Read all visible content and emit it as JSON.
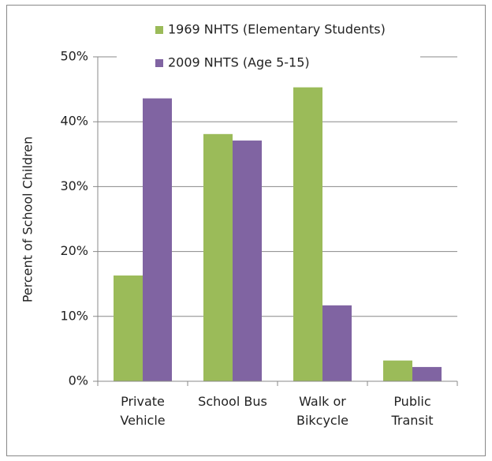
{
  "chart_data": {
    "type": "bar",
    "y_axis_label": "Percent of School Children",
    "categories": [
      "Private\nVehicle",
      "School Bus",
      "Walk or\nBikcycle",
      "Public\nTransit"
    ],
    "series": [
      {
        "name": "1969 NHTS (Elementary Students)",
        "color": "#9bbb59",
        "values": [
          16.3,
          38.1,
          45.3,
          3.2
        ]
      },
      {
        "name": "2009 NHTS (Age 5-15)",
        "color": "#8064a2",
        "values": [
          43.6,
          37.1,
          11.7,
          2.2
        ]
      }
    ],
    "ylim": [
      0,
      50
    ],
    "yticks": [
      {
        "value": 0,
        "label": "0%"
      },
      {
        "value": 10,
        "label": "10%"
      },
      {
        "value": 20,
        "label": "20%"
      },
      {
        "value": 30,
        "label": "30%"
      },
      {
        "value": 40,
        "label": "40%"
      },
      {
        "value": 50,
        "label": "50%"
      }
    ],
    "grid": true,
    "legend": "top"
  }
}
